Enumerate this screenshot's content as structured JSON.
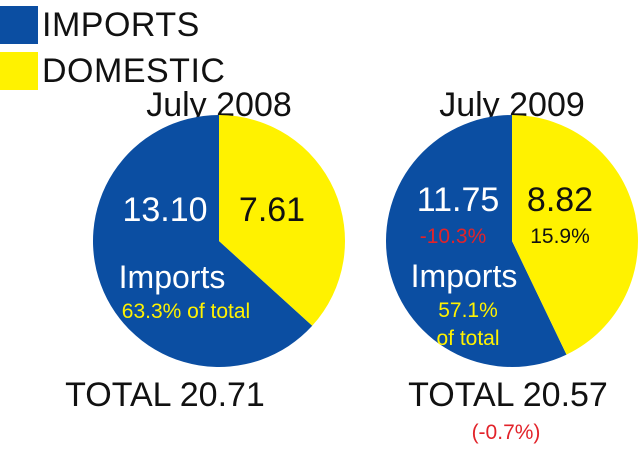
{
  "legend": [
    {
      "label": "IMPORTS",
      "color": "#0b4ea2"
    },
    {
      "label": "DOMESTIC",
      "color": "#fff200"
    }
  ],
  "colors": {
    "imports": "#0b4ea2",
    "domestic": "#fff200",
    "change_negative": "#e2232a",
    "dark_text": "#111111",
    "light_text": "#ffffff"
  },
  "chart_data": [
    {
      "type": "pie",
      "title": "July 2008",
      "slices": [
        {
          "name": "IMPORTS",
          "value": 13.1,
          "value_label": "13.10"
        },
        {
          "name": "DOMESTIC",
          "value": 7.61,
          "value_label": "7.61"
        }
      ],
      "imports_caption": "Imports",
      "imports_share": "63.3% of total",
      "total": "TOTAL 20.71"
    },
    {
      "type": "pie",
      "title": "July 2009",
      "slices": [
        {
          "name": "IMPORTS",
          "value": 11.75,
          "value_label": "11.75",
          "change": "-10.3%"
        },
        {
          "name": "DOMESTIC",
          "value": 8.82,
          "value_label": "8.82",
          "change": "15.9%"
        }
      ],
      "imports_caption": "Imports",
      "imports_share_lines": [
        "57.1%",
        "of total"
      ],
      "total": "TOTAL 20.57",
      "total_change": "(-0.7%)"
    }
  ]
}
